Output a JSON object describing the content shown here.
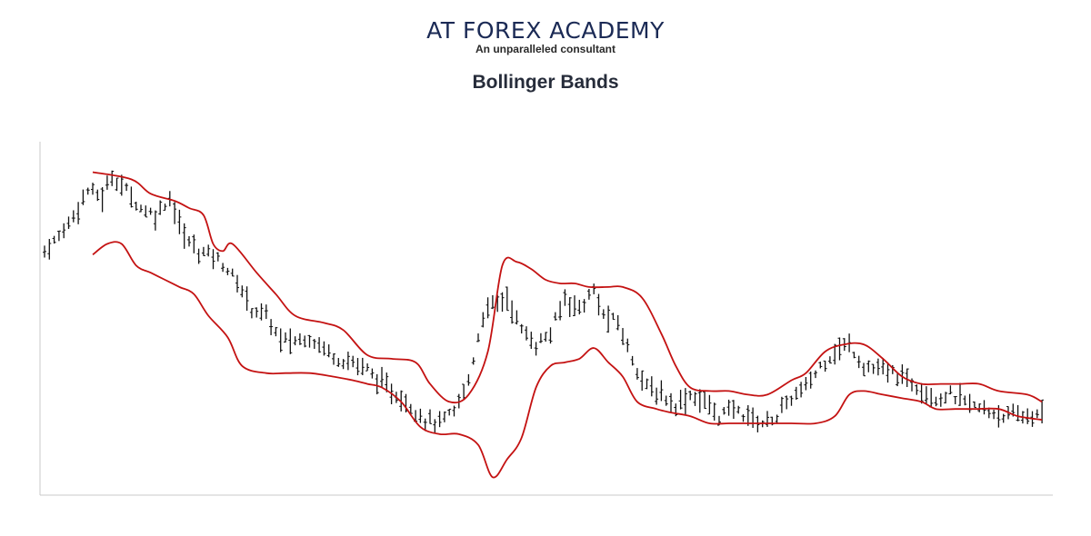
{
  "header": {
    "brand": "AT FOREX ACADEMY",
    "tagline": "An unparalleled consultant"
  },
  "chart_data": {
    "type": "line",
    "title": "Bollinger Bands",
    "xlabel": "",
    "ylabel": "",
    "grid": false,
    "legend": "none",
    "ylim": [
      0,
      100
    ],
    "colors": {
      "price": "#111111",
      "bands": "#c41212",
      "axis": "#c8c8c8"
    },
    "price_anchors": [
      [
        0,
        68
      ],
      [
        3,
        72
      ],
      [
        6,
        78
      ],
      [
        9,
        85
      ],
      [
        12,
        83
      ],
      [
        14,
        89
      ],
      [
        17,
        85
      ],
      [
        20,
        80
      ],
      [
        23,
        78
      ],
      [
        26,
        83
      ],
      [
        29,
        72
      ],
      [
        32,
        68
      ],
      [
        35,
        67
      ],
      [
        38,
        63
      ],
      [
        41,
        57
      ],
      [
        43,
        52
      ],
      [
        46,
        50
      ],
      [
        49,
        43
      ],
      [
        52,
        43
      ],
      [
        55,
        44
      ],
      [
        58,
        41
      ],
      [
        61,
        38
      ],
      [
        64,
        37
      ],
      [
        67,
        35
      ],
      [
        70,
        31
      ],
      [
        73,
        28
      ],
      [
        76,
        25
      ],
      [
        79,
        21
      ],
      [
        82,
        20
      ],
      [
        85,
        23
      ],
      [
        88,
        32
      ],
      [
        91,
        50
      ],
      [
        93,
        53
      ],
      [
        96,
        55
      ],
      [
        99,
        46
      ],
      [
        102,
        42
      ],
      [
        105,
        45
      ],
      [
        108,
        55
      ],
      [
        111,
        52
      ],
      [
        114,
        57
      ],
      [
        116,
        50
      ],
      [
        119,
        48
      ],
      [
        122,
        38
      ],
      [
        125,
        30
      ],
      [
        128,
        28
      ],
      [
        131,
        25
      ],
      [
        134,
        28
      ],
      [
        137,
        26
      ],
      [
        140,
        22
      ],
      [
        143,
        24
      ],
      [
        146,
        22
      ],
      [
        149,
        20
      ],
      [
        152,
        22
      ],
      [
        155,
        27
      ],
      [
        158,
        30
      ],
      [
        161,
        36
      ],
      [
        164,
        40
      ],
      [
        167,
        42
      ],
      [
        170,
        36
      ],
      [
        173,
        35
      ],
      [
        176,
        34
      ],
      [
        179,
        32
      ],
      [
        182,
        30
      ],
      [
        185,
        27
      ],
      [
        188,
        28
      ],
      [
        191,
        26
      ],
      [
        194,
        24
      ],
      [
        197,
        23
      ],
      [
        200,
        22
      ],
      [
        203,
        22
      ],
      [
        206,
        22
      ]
    ],
    "upper_band": [
      [
        10,
        90
      ],
      [
        18,
        88
      ],
      [
        22,
        84
      ],
      [
        27,
        82
      ],
      [
        30,
        80
      ],
      [
        33,
        78
      ],
      [
        35,
        70
      ],
      [
        37,
        68
      ],
      [
        39,
        70
      ],
      [
        44,
        62
      ],
      [
        48,
        56
      ],
      [
        52,
        50
      ],
      [
        58,
        48
      ],
      [
        62,
        46
      ],
      [
        67,
        39
      ],
      [
        72,
        38
      ],
      [
        77,
        37
      ],
      [
        80,
        31
      ],
      [
        84,
        26
      ],
      [
        88,
        28
      ],
      [
        92,
        40
      ],
      [
        95,
        64
      ],
      [
        98,
        65
      ],
      [
        101,
        63
      ],
      [
        104,
        60
      ],
      [
        107,
        59
      ],
      [
        110,
        59
      ],
      [
        113,
        58
      ],
      [
        117,
        58
      ],
      [
        120,
        58
      ],
      [
        124,
        55
      ],
      [
        128,
        45
      ],
      [
        131,
        36
      ],
      [
        134,
        30
      ],
      [
        138,
        29
      ],
      [
        142,
        29
      ],
      [
        146,
        28
      ],
      [
        150,
        28
      ],
      [
        155,
        32
      ],
      [
        158,
        34
      ],
      [
        162,
        40
      ],
      [
        166,
        42
      ],
      [
        170,
        42
      ],
      [
        174,
        38
      ],
      [
        178,
        33
      ],
      [
        182,
        31
      ],
      [
        186,
        31
      ],
      [
        190,
        31
      ],
      [
        194,
        31
      ],
      [
        198,
        29
      ],
      [
        204,
        28
      ],
      [
        207,
        26
      ]
    ],
    "lower_band": [
      [
        10,
        67
      ],
      [
        13,
        70
      ],
      [
        16,
        70
      ],
      [
        19,
        64
      ],
      [
        22,
        62
      ],
      [
        25,
        60
      ],
      [
        28,
        58
      ],
      [
        31,
        56
      ],
      [
        34,
        50
      ],
      [
        38,
        44
      ],
      [
        41,
        36
      ],
      [
        46,
        34
      ],
      [
        50,
        34
      ],
      [
        55,
        34
      ],
      [
        60,
        33
      ],
      [
        64,
        32
      ],
      [
        67,
        31
      ],
      [
        70,
        30
      ],
      [
        74,
        26
      ],
      [
        78,
        19
      ],
      [
        82,
        17
      ],
      [
        86,
        17
      ],
      [
        90,
        14
      ],
      [
        93,
        5
      ],
      [
        96,
        10
      ],
      [
        99,
        16
      ],
      [
        102,
        30
      ],
      [
        105,
        36
      ],
      [
        108,
        37
      ],
      [
        111,
        38
      ],
      [
        114,
        41
      ],
      [
        117,
        37
      ],
      [
        120,
        33
      ],
      [
        123,
        26
      ],
      [
        127,
        24
      ],
      [
        130,
        23
      ],
      [
        134,
        22
      ],
      [
        138,
        20
      ],
      [
        142,
        20
      ],
      [
        146,
        20
      ],
      [
        150,
        20
      ],
      [
        155,
        20
      ],
      [
        160,
        20
      ],
      [
        164,
        22
      ],
      [
        167,
        28
      ],
      [
        170,
        29
      ],
      [
        174,
        28
      ],
      [
        178,
        27
      ],
      [
        182,
        26
      ],
      [
        185,
        24
      ],
      [
        189,
        24
      ],
      [
        193,
        24
      ],
      [
        198,
        24
      ],
      [
        202,
        22
      ],
      [
        207,
        21
      ]
    ]
  }
}
